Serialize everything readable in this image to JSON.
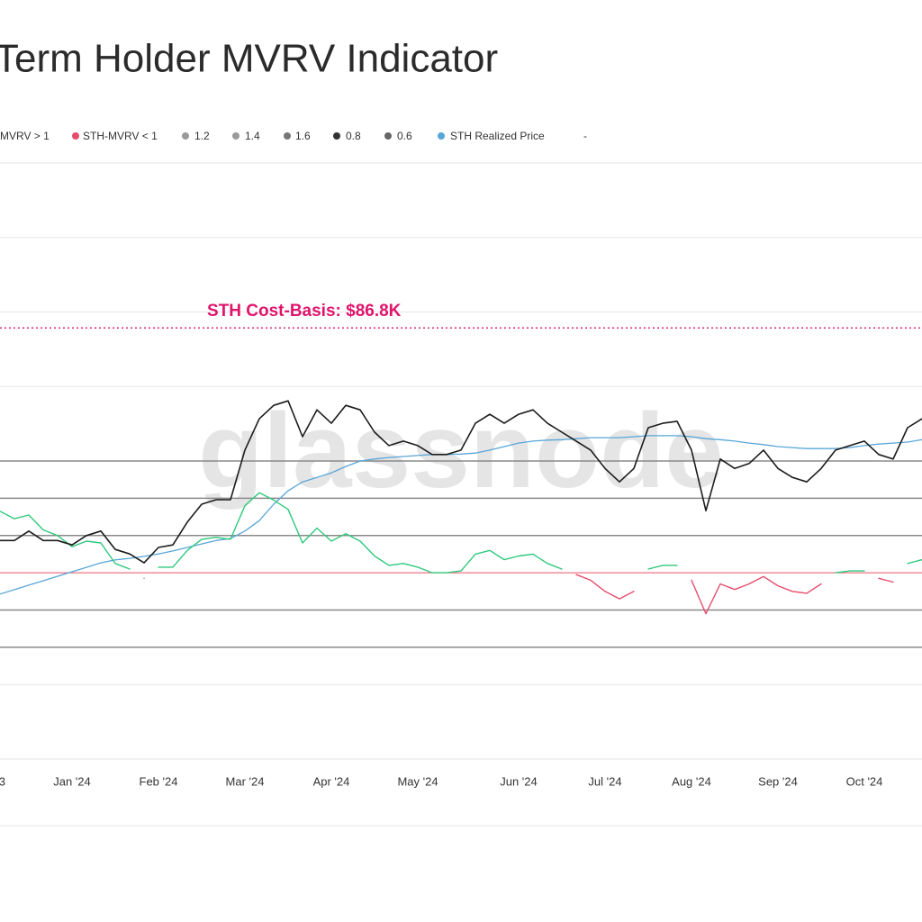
{
  "chart_data": {
    "type": "line",
    "title": "Term Holder MVRV Indicator",
    "watermark": "glassnode",
    "categories": [
      "3",
      null,
      null,
      null,
      null,
      "Jan '24",
      null,
      null,
      null,
      null,
      null,
      "Feb '24",
      null,
      null,
      null,
      null,
      null,
      "Mar '24",
      null,
      null,
      null,
      null,
      null,
      "Apr '24",
      null,
      null,
      null,
      null,
      null,
      "May '24",
      null,
      null,
      null,
      null,
      null,
      null,
      "Jun '24",
      null,
      null,
      null,
      null,
      null,
      "Jul '24",
      null,
      null,
      null,
      null,
      null,
      "Aug '24",
      null,
      null,
      null,
      null,
      null,
      "Sep '24",
      null,
      null,
      null,
      null,
      null,
      "Oct '24",
      null,
      null,
      null,
      null
    ],
    "series": [
      {
        "color": "#1c1c1c",
        "axis": "y",
        "values": [
          44000,
          44000,
          45900,
          44000,
          44000,
          43100,
          45000,
          45900,
          42200,
          41300,
          39500,
          42600,
          43100,
          47700,
          51300,
          52200,
          52200,
          62200,
          68500,
          71200,
          72100,
          64900,
          70300,
          67600,
          71200,
          70300,
          65800,
          63100,
          64000,
          63100,
          61300,
          61300,
          62200,
          67600,
          69400,
          67600,
          69400,
          70300,
          67600,
          65800,
          64000,
          62200,
          58500,
          55800,
          58500,
          66700,
          67600,
          68000,
          62200,
          50000,
          60400,
          58500,
          59500,
          62200,
          58500,
          56700,
          55800,
          58500,
          62200,
          63100,
          64000,
          61300,
          60400,
          66700,
          68500
        ]
      },
      {
        "name": "MVRV > 1",
        "color": "#2ec97c",
        "axis": "y2",
        "values": [
          1.33,
          1.29,
          1.31,
          1.23,
          1.2,
          1.14,
          1.17,
          1.16,
          1.05,
          1.02,
          null,
          1.03,
          1.03,
          1.12,
          1.18,
          1.19,
          1.18,
          1.36,
          1.43,
          1.39,
          1.34,
          1.16,
          1.24,
          1.17,
          1.21,
          1.17,
          1.09,
          1.04,
          1.05,
          1.03,
          1,
          1,
          1.01,
          1.1,
          1.12,
          1.07,
          1.09,
          1.1,
          1.05,
          1.02,
          null,
          null,
          null,
          null,
          null,
          1.02,
          1.04,
          1.04,
          null,
          null,
          null,
          null,
          null,
          null,
          null,
          null,
          null,
          null,
          1,
          1.01,
          1.01,
          null,
          null,
          1.05,
          1.07
        ]
      },
      {
        "name": "STH-MVRV < 1",
        "color": "#e64d6c",
        "axis": "y2",
        "values": [
          null,
          null,
          null,
          null,
          null,
          null,
          null,
          null,
          null,
          null,
          0.97,
          null,
          null,
          null,
          null,
          null,
          null,
          null,
          null,
          null,
          null,
          null,
          null,
          null,
          null,
          null,
          null,
          null,
          null,
          null,
          null,
          null,
          null,
          null,
          null,
          null,
          null,
          null,
          null,
          null,
          0.99,
          0.96,
          0.9,
          0.86,
          0.9,
          null,
          null,
          null,
          0.96,
          0.78,
          0.94,
          0.91,
          0.94,
          0.98,
          0.93,
          0.9,
          0.89,
          0.94,
          null,
          null,
          null,
          0.97,
          0.95,
          null,
          null
        ]
      },
      {
        "name": "1.2",
        "color": "#9a9a9a",
        "axis": "y2",
        "level": 1.2
      },
      {
        "name": "1.4",
        "color": "#9a9a9a",
        "axis": "y2",
        "level": 1.4
      },
      {
        "name": "1.6",
        "color": "#767676",
        "axis": "y2",
        "level": 1.6
      },
      {
        "name": "0.8",
        "color": "#333333",
        "axis": "y2",
        "level": 0.8
      },
      {
        "name": "0.6",
        "color": "#666666",
        "axis": "y2",
        "level": 0.6
      },
      {
        "name": "STH Realized Price",
        "color": "#58a6d8",
        "axis": "y",
        "values": [
          33200,
          34100,
          35000,
          35900,
          36800,
          37700,
          38600,
          39500,
          40100,
          40400,
          40800,
          41300,
          41900,
          42600,
          43300,
          44000,
          44400,
          45900,
          48000,
          51300,
          54000,
          55800,
          56700,
          57600,
          58900,
          60000,
          60400,
          60700,
          60900,
          61100,
          61300,
          61300,
          61400,
          61600,
          62200,
          62900,
          63600,
          64000,
          64200,
          64300,
          64500,
          64700,
          64700,
          64700,
          64900,
          65100,
          65100,
          65100,
          64900,
          64500,
          64300,
          64000,
          63600,
          63300,
          62900,
          62700,
          62500,
          62500,
          62500,
          62700,
          63100,
          63400,
          63600,
          63800,
          64300
        ]
      }
    ],
    "legend_extra": "-",
    "ylim": [
      0,
      120000
    ],
    "yticks": [
      0,
      15000,
      30000,
      45000,
      60000,
      75000,
      90000,
      105000,
      120000
    ],
    "y2lim": [
      0,
      3.2
    ],
    "threshold": {
      "value": 1,
      "axis": "y2",
      "color": "#e8506a"
    },
    "annotation": {
      "text": "STH Cost-Basis: $86.8K",
      "value": 86800,
      "color": "#e0146c"
    },
    "grid": true
  }
}
